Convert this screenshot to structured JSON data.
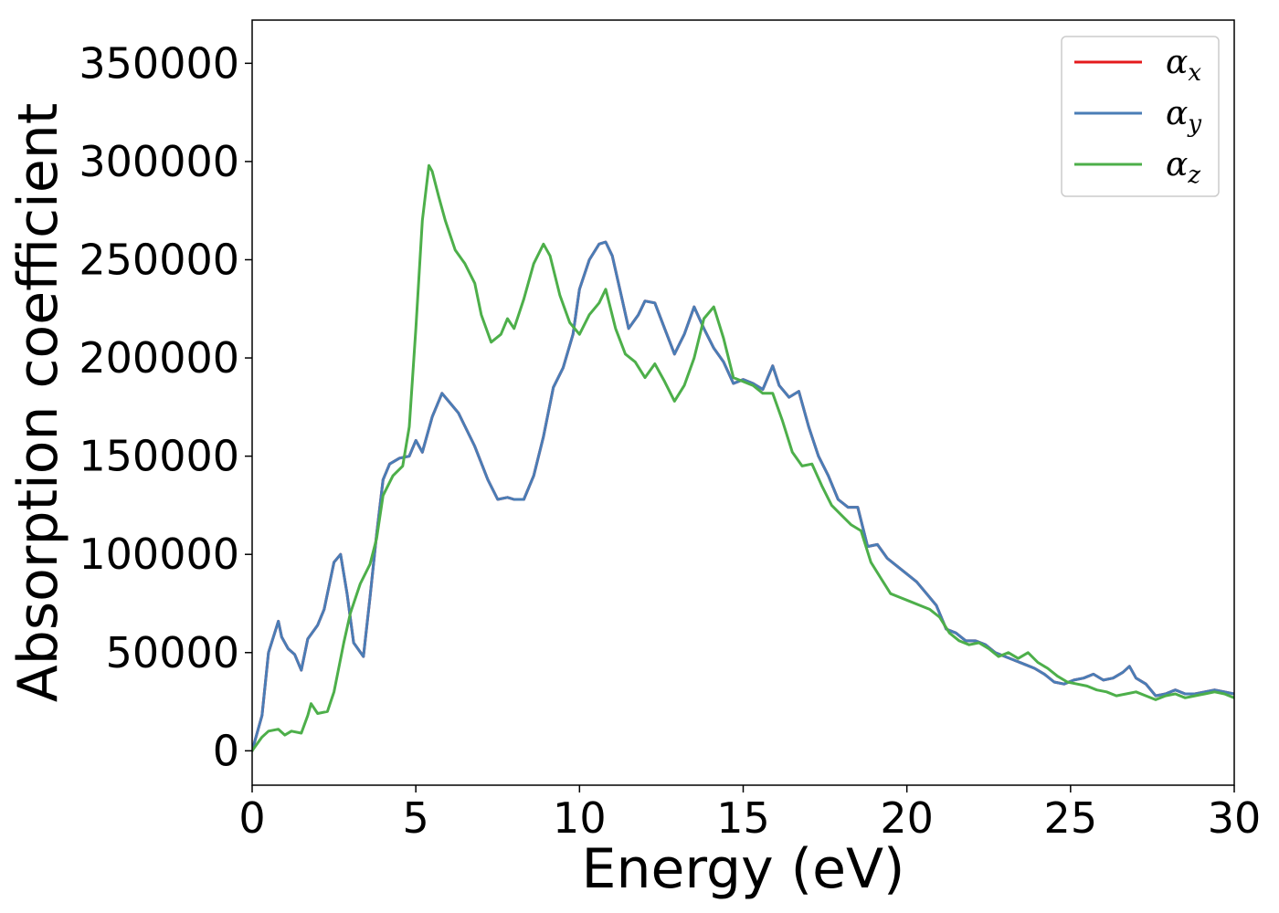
{
  "chart_data": {
    "type": "line",
    "title": "",
    "xlabel": "Energy (eV)",
    "ylabel": "Absorption coefficient",
    "xlim": [
      0,
      30
    ],
    "ylim": [
      -17500,
      372000
    ],
    "xticks": [
      0,
      5,
      10,
      15,
      20,
      25,
      30
    ],
    "yticks": [
      0,
      50000,
      100000,
      150000,
      200000,
      250000,
      300000,
      350000
    ],
    "grid": false,
    "legend_position": "top-right",
    "series": [
      {
        "name": "αx",
        "legend_base": "α",
        "legend_sub": "x",
        "color": "#e41a1c",
        "x": [
          0,
          0.3,
          0.5,
          0.8,
          0.9,
          1.1,
          1.3,
          1.5,
          1.7,
          2.0,
          2.2,
          2.5,
          2.7,
          2.9,
          3.1,
          3.4,
          3.6,
          3.8,
          4.0,
          4.2,
          4.5,
          4.8,
          5.0,
          5.2,
          5.5,
          5.8,
          6.0,
          6.3,
          6.8,
          7.2,
          7.5,
          7.8,
          8.0,
          8.3,
          8.6,
          8.9,
          9.2,
          9.5,
          9.8,
          10.0,
          10.3,
          10.6,
          10.8,
          11.0,
          11.3,
          11.5,
          11.8,
          12.0,
          12.3,
          12.6,
          12.9,
          13.2,
          13.5,
          13.8,
          14.1,
          14.4,
          14.7,
          15.0,
          15.3,
          15.6,
          15.9,
          16.1,
          16.4,
          16.7,
          17.0,
          17.3,
          17.6,
          17.9,
          18.2,
          18.5,
          18.8,
          19.1,
          19.4,
          19.7,
          20.0,
          20.3,
          20.6,
          20.9,
          21.2,
          21.5,
          21.8,
          22.1,
          22.4,
          22.7,
          23.0,
          23.3,
          23.6,
          23.9,
          24.2,
          24.5,
          24.8,
          25.1,
          25.4,
          25.7,
          26.0,
          26.3,
          26.6,
          26.8,
          27.0,
          27.3,
          27.6,
          27.9,
          28.2,
          28.5,
          28.8,
          29.1,
          29.4,
          29.7,
          30.0
        ],
        "y": [
          0,
          18000,
          50000,
          66000,
          58000,
          52000,
          49000,
          41000,
          57000,
          64000,
          72000,
          96000,
          100000,
          80000,
          55000,
          48000,
          78000,
          110000,
          138000,
          146000,
          149000,
          150000,
          158000,
          152000,
          170000,
          182000,
          178000,
          172000,
          155000,
          138000,
          128000,
          129000,
          128000,
          128000,
          140000,
          160000,
          185000,
          195000,
          212000,
          235000,
          250000,
          258000,
          259000,
          252000,
          230000,
          215000,
          222000,
          229000,
          228000,
          215000,
          202000,
          212000,
          226000,
          215000,
          205000,
          198000,
          187000,
          189000,
          187000,
          184000,
          196000,
          186000,
          180000,
          183000,
          165000,
          150000,
          140000,
          128000,
          124000,
          124000,
          104000,
          105000,
          98000,
          94000,
          90000,
          86000,
          80000,
          74000,
          62000,
          60000,
          56000,
          56000,
          54000,
          50000,
          48000,
          46000,
          44000,
          42000,
          39000,
          35000,
          34000,
          36000,
          37000,
          39000,
          36000,
          37000,
          40000,
          43000,
          37000,
          34000,
          28000,
          29000,
          31000,
          29000,
          29000,
          30000,
          31000,
          30000,
          29000
        ]
      },
      {
        "name": "αy",
        "legend_base": "α",
        "legend_sub": "y",
        "color": "#4a7db6",
        "x": [
          0,
          0.3,
          0.5,
          0.8,
          0.9,
          1.1,
          1.3,
          1.5,
          1.7,
          2.0,
          2.2,
          2.5,
          2.7,
          2.9,
          3.1,
          3.4,
          3.6,
          3.8,
          4.0,
          4.2,
          4.5,
          4.8,
          5.0,
          5.2,
          5.5,
          5.8,
          6.0,
          6.3,
          6.8,
          7.2,
          7.5,
          7.8,
          8.0,
          8.3,
          8.6,
          8.9,
          9.2,
          9.5,
          9.8,
          10.0,
          10.3,
          10.6,
          10.8,
          11.0,
          11.3,
          11.5,
          11.8,
          12.0,
          12.3,
          12.6,
          12.9,
          13.2,
          13.5,
          13.8,
          14.1,
          14.4,
          14.7,
          15.0,
          15.3,
          15.6,
          15.9,
          16.1,
          16.4,
          16.7,
          17.0,
          17.3,
          17.6,
          17.9,
          18.2,
          18.5,
          18.8,
          19.1,
          19.4,
          19.7,
          20.0,
          20.3,
          20.6,
          20.9,
          21.2,
          21.5,
          21.8,
          22.1,
          22.4,
          22.7,
          23.0,
          23.3,
          23.6,
          23.9,
          24.2,
          24.5,
          24.8,
          25.1,
          25.4,
          25.7,
          26.0,
          26.3,
          26.6,
          26.8,
          27.0,
          27.3,
          27.6,
          27.9,
          28.2,
          28.5,
          28.8,
          29.1,
          29.4,
          29.7,
          30.0
        ],
        "y": [
          0,
          18000,
          50000,
          66000,
          58000,
          52000,
          49000,
          41000,
          57000,
          64000,
          72000,
          96000,
          100000,
          80000,
          55000,
          48000,
          78000,
          110000,
          138000,
          146000,
          149000,
          150000,
          158000,
          152000,
          170000,
          182000,
          178000,
          172000,
          155000,
          138000,
          128000,
          129000,
          128000,
          128000,
          140000,
          160000,
          185000,
          195000,
          212000,
          235000,
          250000,
          258000,
          259000,
          252000,
          230000,
          215000,
          222000,
          229000,
          228000,
          215000,
          202000,
          212000,
          226000,
          215000,
          205000,
          198000,
          187000,
          189000,
          187000,
          184000,
          196000,
          186000,
          180000,
          183000,
          165000,
          150000,
          140000,
          128000,
          124000,
          124000,
          104000,
          105000,
          98000,
          94000,
          90000,
          86000,
          80000,
          74000,
          62000,
          60000,
          56000,
          56000,
          54000,
          50000,
          48000,
          46000,
          44000,
          42000,
          39000,
          35000,
          34000,
          36000,
          37000,
          39000,
          36000,
          37000,
          40000,
          43000,
          37000,
          34000,
          28000,
          29000,
          31000,
          29000,
          29000,
          30000,
          31000,
          30000,
          29000
        ]
      },
      {
        "name": "αz",
        "legend_base": "α",
        "legend_sub": "z",
        "color": "#4daf4a",
        "x": [
          0,
          0.3,
          0.5,
          0.8,
          1.0,
          1.2,
          1.5,
          1.7,
          1.8,
          2.0,
          2.3,
          2.5,
          2.8,
          3.0,
          3.3,
          3.6,
          3.8,
          4.0,
          4.3,
          4.6,
          4.8,
          5.0,
          5.2,
          5.4,
          5.5,
          5.7,
          5.9,
          6.2,
          6.5,
          6.8,
          7.0,
          7.3,
          7.6,
          7.8,
          8.0,
          8.3,
          8.6,
          8.9,
          9.1,
          9.4,
          9.7,
          10.0,
          10.3,
          10.6,
          10.8,
          11.1,
          11.4,
          11.7,
          12.0,
          12.3,
          12.6,
          12.9,
          13.2,
          13.5,
          13.8,
          14.1,
          14.4,
          14.7,
          15.0,
          15.3,
          15.6,
          15.9,
          16.2,
          16.5,
          16.8,
          17.1,
          17.4,
          17.7,
          18.0,
          18.3,
          18.6,
          18.9,
          19.2,
          19.5,
          19.8,
          20.1,
          20.4,
          20.7,
          21.0,
          21.3,
          21.6,
          21.9,
          22.2,
          22.5,
          22.8,
          23.1,
          23.4,
          23.7,
          24.0,
          24.3,
          24.6,
          24.9,
          25.2,
          25.5,
          25.8,
          26.1,
          26.4,
          26.7,
          27.0,
          27.3,
          27.6,
          27.9,
          28.2,
          28.5,
          28.8,
          29.1,
          29.4,
          29.7,
          30.0
        ],
        "y": [
          0,
          7000,
          10000,
          11000,
          8000,
          10000,
          9000,
          18000,
          24000,
          19000,
          20000,
          30000,
          55000,
          70000,
          85000,
          95000,
          108000,
          130000,
          140000,
          145000,
          165000,
          215000,
          270000,
          298000,
          295000,
          282000,
          270000,
          255000,
          248000,
          238000,
          222000,
          208000,
          212000,
          220000,
          215000,
          230000,
          248000,
          258000,
          252000,
          232000,
          218000,
          212000,
          222000,
          228000,
          235000,
          215000,
          202000,
          198000,
          190000,
          197000,
          188000,
          178000,
          186000,
          200000,
          220000,
          226000,
          210000,
          190000,
          188000,
          186000,
          182000,
          182000,
          168000,
          152000,
          145000,
          146000,
          135000,
          125000,
          120000,
          115000,
          112000,
          96000,
          88000,
          80000,
          78000,
          76000,
          74000,
          72000,
          68000,
          60000,
          56000,
          54000,
          55000,
          52000,
          48000,
          50000,
          47000,
          50000,
          45000,
          42000,
          38000,
          35000,
          34000,
          33000,
          31000,
          30000,
          28000,
          29000,
          30000,
          28000,
          26000,
          28000,
          29000,
          27000,
          28000,
          29000,
          30000,
          29000,
          27000
        ]
      }
    ]
  }
}
